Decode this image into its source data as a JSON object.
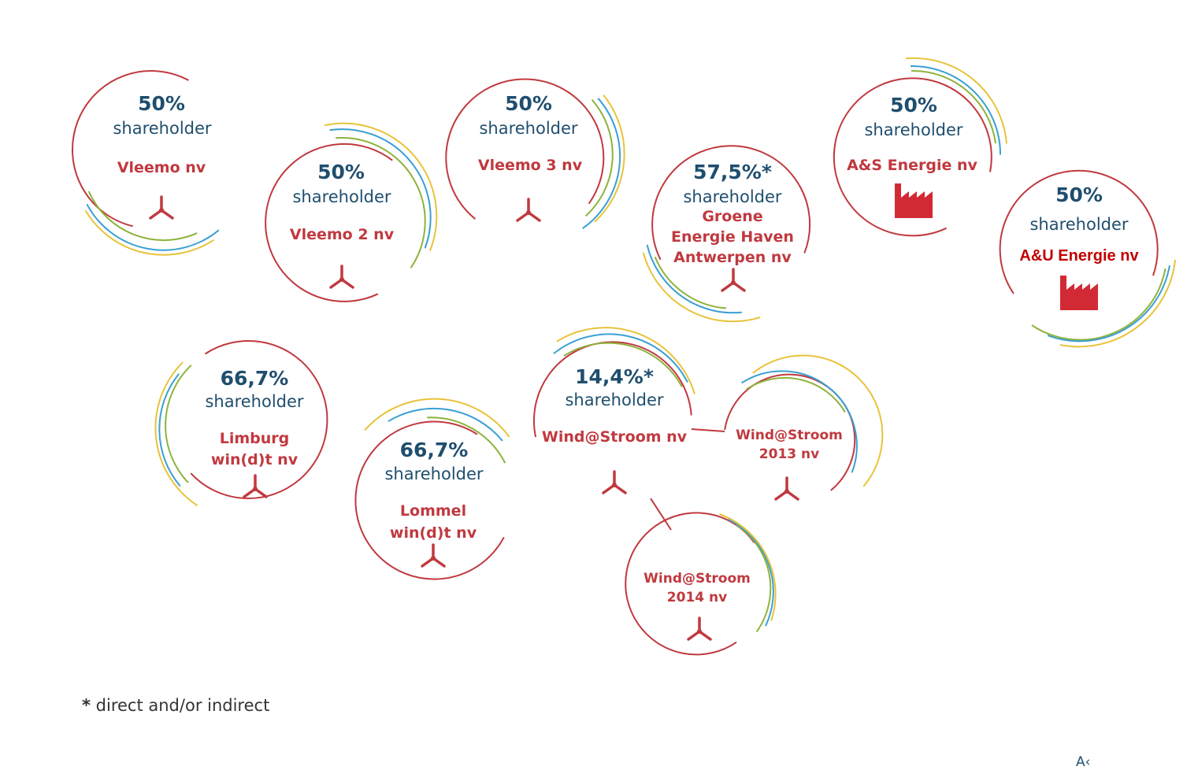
{
  "colors": {
    "ring": "#c0393f",
    "arc_yellow": "#e7c33b",
    "arc_blue": "#3aa0d2",
    "arc_green": "#8db33b",
    "text_dark": "#1f4e6e",
    "name_red": "#c0393f",
    "factory_red": "#d22a35"
  },
  "entities": [
    {
      "id": "vleemo",
      "pct": "50%",
      "role": "shareholder",
      "name": [
        "Vleemo nv"
      ],
      "icon": "wind-turbine-icon"
    },
    {
      "id": "vleemo2",
      "pct": "50%",
      "role": "shareholder",
      "name": [
        "Vleemo 2 nv"
      ],
      "icon": "wind-turbine-icon"
    },
    {
      "id": "vleemo3",
      "pct": "50%",
      "role": "shareholder",
      "name": [
        "Vleemo 3 nv"
      ],
      "icon": "wind-turbine-icon"
    },
    {
      "id": "groene",
      "pct": "57,5%*",
      "role": "shareholder",
      "name": [
        "Groene",
        "Energie Haven",
        "Antwerpen nv"
      ],
      "icon": "wind-turbine-icon"
    },
    {
      "id": "as_energie",
      "pct": "50%",
      "role": "shareholder",
      "name": [
        "A&S Energie nv"
      ],
      "icon": "factory-icon"
    },
    {
      "id": "au_energie",
      "pct": "50%",
      "role": "shareholder",
      "name": [
        "A&U Energie nv"
      ],
      "icon": "factory-icon"
    },
    {
      "id": "limburg",
      "pct": "66,7%",
      "role": "shareholder",
      "name": [
        "Limburg",
        "win(d)t nv"
      ],
      "icon": "wind-turbine-icon"
    },
    {
      "id": "lommel",
      "pct": "66,7%",
      "role": "shareholder",
      "name": [
        "Lommel",
        "win(d)t nv"
      ],
      "icon": "wind-turbine-icon"
    },
    {
      "id": "windstroom",
      "pct": "14,4%*",
      "role": "shareholder",
      "name": [
        "Wind@Stroom nv"
      ],
      "icon": "wind-turbine-icon"
    },
    {
      "id": "windstroom2013",
      "name": [
        "Wind@Stroom",
        "2013 nv"
      ],
      "icon": "wind-turbine-icon"
    },
    {
      "id": "windstroom2014",
      "name": [
        "Wind@Stroom",
        "2014 nv"
      ],
      "icon": "wind-turbine-icon"
    }
  ],
  "footnote": {
    "star": "*",
    "text": "direct and/or indirect"
  },
  "corner_text": "A‹"
}
